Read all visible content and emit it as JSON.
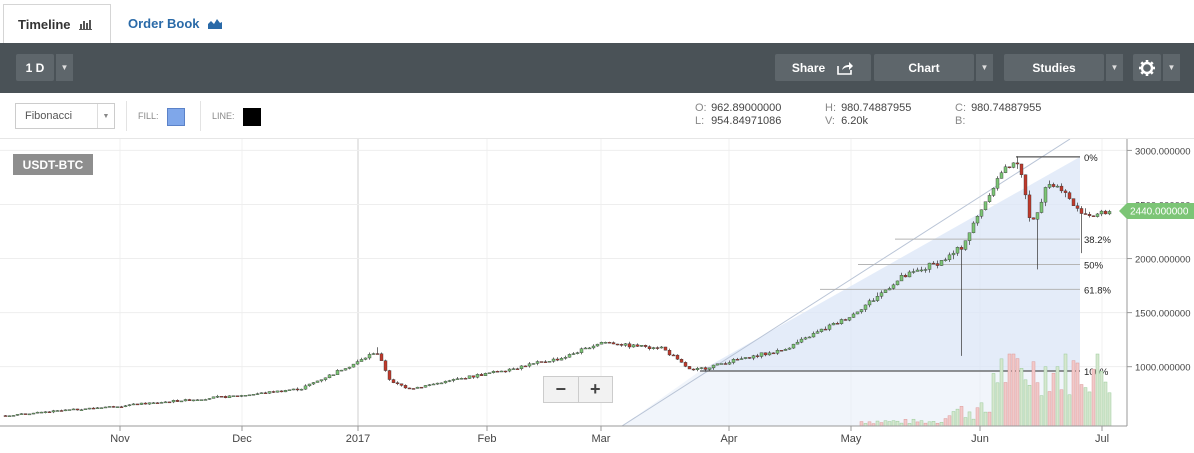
{
  "tabs": {
    "timeline": "Timeline",
    "orderbook": "Order Book"
  },
  "toolbar": {
    "interval": "1 D",
    "share": "Share",
    "chart": "Chart",
    "studies": "Studies"
  },
  "drawing": {
    "tool": "Fibonacci",
    "fill_label": "FILL:",
    "line_label": "LINE:",
    "fill_color": "#7fa7ea",
    "line_color": "#000000"
  },
  "ohlc": {
    "o_label": "O:",
    "o": "962.89000000",
    "l_label": "L:",
    "l": "954.84971086",
    "h_label": "H:",
    "h": "980.74887955",
    "v_label": "V:",
    "v": "6.20k",
    "c_label": "C:",
    "c": "980.74887955",
    "b_label": "B:",
    "b": ""
  },
  "symbol": "USDT-BTC",
  "zoom": {
    "minus": "−",
    "plus": "+"
  },
  "chart_data": {
    "type": "candlestick",
    "y_ticks": [
      "3000.000000",
      "2500.000000",
      "2000.000000",
      "1500.000000",
      "1000.000000"
    ],
    "y_tick_values": [
      3000,
      2500,
      2000,
      1500,
      1000
    ],
    "x_ticks": [
      "Nov",
      "Dec",
      "2017",
      "Feb",
      "Mar",
      "Apr",
      "May",
      "Jun",
      "Jul"
    ],
    "current_price": "2440.000000",
    "current_value": 2440,
    "fib_levels": [
      {
        "label": "0%",
        "value": 2940
      },
      {
        "label": "38.2%",
        "value": 2180
      },
      {
        "label": "50%",
        "value": 1945
      },
      {
        "label": "61.8%",
        "value": 1715
      },
      {
        "label": "100%",
        "value": 960
      }
    ],
    "ylim": [
      470,
      3050
    ]
  }
}
